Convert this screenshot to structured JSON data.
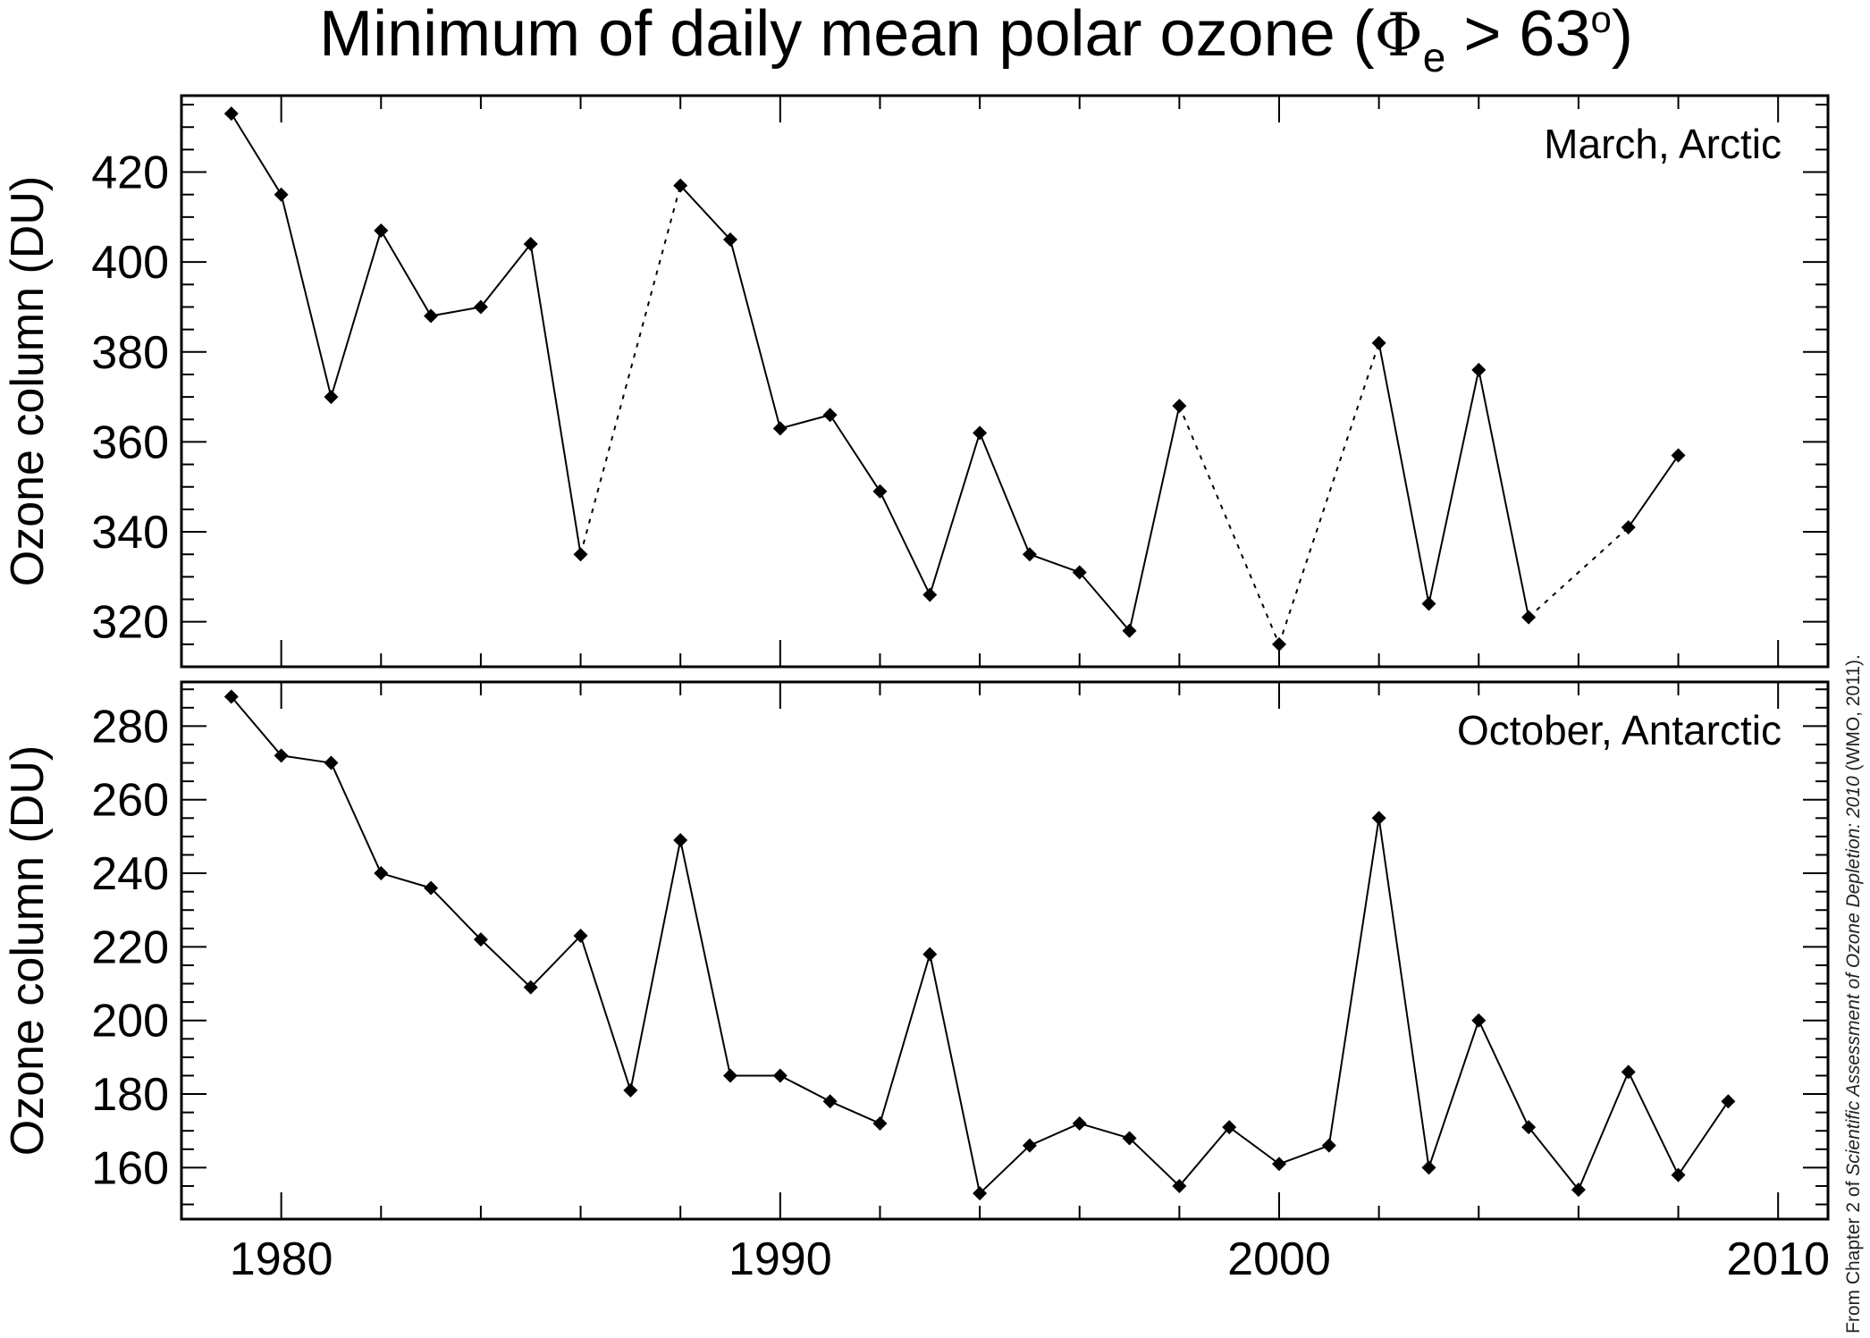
{
  "title": {
    "prefix": "Minimum of daily mean polar ozone (",
    "phi": "Φ",
    "phi_sub": "e",
    "rest": " > 63",
    "sup": "o",
    "close": ")"
  },
  "credit": {
    "prefix": "From Chapter 2 of ",
    "italic": "Scientific Assessment of Ozone Depletion: 2010",
    "suffix": " (WMO, 2011)."
  },
  "chart_data": [
    {
      "type": "line",
      "panel_label": "March, Arctic",
      "ylabel": "Ozone column (DU)",
      "xlabel": "",
      "xlim": [
        1978,
        2011
      ],
      "ylim": [
        310,
        437
      ],
      "x_ticks": [
        1980,
        1990,
        2000,
        2010
      ],
      "y_ticks": [
        320,
        340,
        360,
        380,
        400,
        420
      ],
      "grid": false,
      "line_style": "solid; dotted where years are missing",
      "points": [
        {
          "x": 1979,
          "y": 433
        },
        {
          "x": 1980,
          "y": 415
        },
        {
          "x": 1981,
          "y": 370
        },
        {
          "x": 1982,
          "y": 407
        },
        {
          "x": 1983,
          "y": 388
        },
        {
          "x": 1984,
          "y": 390
        },
        {
          "x": 1985,
          "y": 404
        },
        {
          "x": 1986,
          "y": 335
        },
        {
          "x": 1988,
          "y": 417
        },
        {
          "x": 1989,
          "y": 405
        },
        {
          "x": 1990,
          "y": 363
        },
        {
          "x": 1991,
          "y": 366
        },
        {
          "x": 1992,
          "y": 349
        },
        {
          "x": 1993,
          "y": 326
        },
        {
          "x": 1994,
          "y": 362
        },
        {
          "x": 1995,
          "y": 335
        },
        {
          "x": 1996,
          "y": 331
        },
        {
          "x": 1997,
          "y": 318
        },
        {
          "x": 1998,
          "y": 368
        },
        {
          "x": 2000,
          "y": 315
        },
        {
          "x": 2002,
          "y": 382
        },
        {
          "x": 2003,
          "y": 324
        },
        {
          "x": 2004,
          "y": 376
        },
        {
          "x": 2005,
          "y": 321
        },
        {
          "x": 2007,
          "y": 341
        },
        {
          "x": 2008,
          "y": 357
        }
      ]
    },
    {
      "type": "line",
      "panel_label": "October, Antarctic",
      "ylabel": "Ozone column (DU)",
      "xlabel": "",
      "xlim": [
        1978,
        2011
      ],
      "ylim": [
        146,
        292
      ],
      "x_ticks": [
        1980,
        1990,
        2000,
        2010
      ],
      "y_ticks": [
        160,
        180,
        200,
        220,
        240,
        260,
        280
      ],
      "grid": false,
      "line_style": "solid",
      "points": [
        {
          "x": 1979,
          "y": 288
        },
        {
          "x": 1980,
          "y": 272
        },
        {
          "x": 1981,
          "y": 270
        },
        {
          "x": 1982,
          "y": 240
        },
        {
          "x": 1983,
          "y": 236
        },
        {
          "x": 1984,
          "y": 222
        },
        {
          "x": 1985,
          "y": 209
        },
        {
          "x": 1986,
          "y": 223
        },
        {
          "x": 1987,
          "y": 181
        },
        {
          "x": 1988,
          "y": 249
        },
        {
          "x": 1989,
          "y": 185
        },
        {
          "x": 1990,
          "y": 185
        },
        {
          "x": 1991,
          "y": 178
        },
        {
          "x": 1992,
          "y": 172
        },
        {
          "x": 1993,
          "y": 218
        },
        {
          "x": 1994,
          "y": 153
        },
        {
          "x": 1995,
          "y": 166
        },
        {
          "x": 1996,
          "y": 172
        },
        {
          "x": 1997,
          "y": 168
        },
        {
          "x": 1998,
          "y": 155
        },
        {
          "x": 1999,
          "y": 171
        },
        {
          "x": 2000,
          "y": 161
        },
        {
          "x": 2001,
          "y": 166
        },
        {
          "x": 2002,
          "y": 255
        },
        {
          "x": 2003,
          "y": 160
        },
        {
          "x": 2004,
          "y": 200
        },
        {
          "x": 2005,
          "y": 171
        },
        {
          "x": 2006,
          "y": 154
        },
        {
          "x": 2007,
          "y": 186
        },
        {
          "x": 2008,
          "y": 158
        },
        {
          "x": 2009,
          "y": 178
        }
      ]
    }
  ]
}
